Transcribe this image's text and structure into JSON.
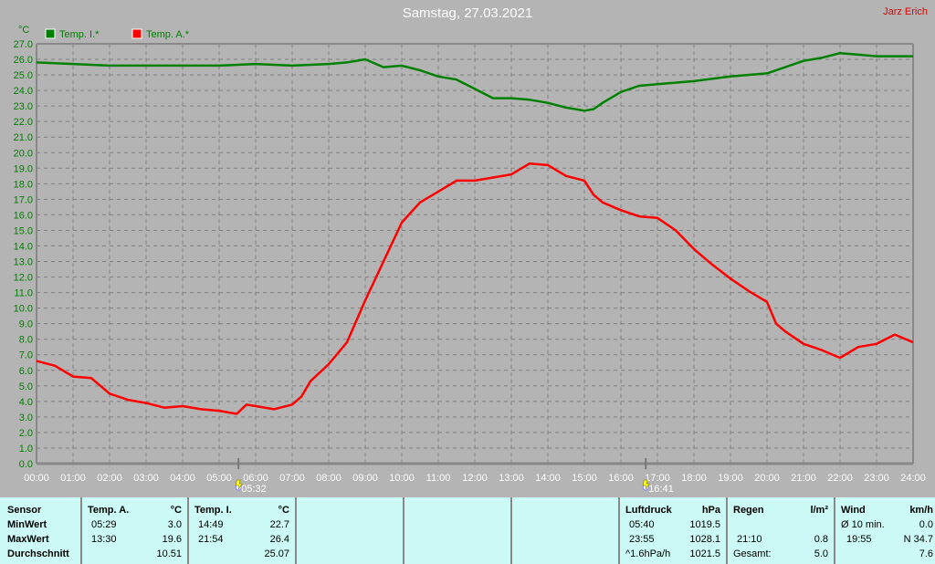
{
  "title": "Samstag, 27.03.2021",
  "author": "Jarz Erich",
  "colors": {
    "inside": "#008000",
    "outside": "#ff0000",
    "axis_text": "#008000",
    "grid": "#808080",
    "panel": "#ccfaf6"
  },
  "chart_data": {
    "type": "line",
    "title": "Samstag, 27.03.2021",
    "ylabel": "°C",
    "xlabel": "",
    "ylim": [
      0,
      27
    ],
    "xlim": [
      0,
      24
    ],
    "grid": true,
    "legend_position": "top-left",
    "y_ticks": [
      "0.0",
      "1.0",
      "2.0",
      "3.0",
      "4.0",
      "5.0",
      "6.0",
      "7.0",
      "8.0",
      "9.0",
      "10.0",
      "11.0",
      "12.0",
      "13.0",
      "14.0",
      "15.0",
      "16.0",
      "17.0",
      "18.0",
      "19.0",
      "20.0",
      "21.0",
      "22.0",
      "23.0",
      "24.0",
      "25.0",
      "26.0",
      "27.0"
    ],
    "x_ticks": [
      "00:00",
      "01:00",
      "02:00",
      "03:00",
      "04:00",
      "05:00",
      "06:00",
      "07:00",
      "08:00",
      "09:00",
      "10:00",
      "11:00",
      "12:00",
      "13:00",
      "14:00",
      "15:00",
      "16:00",
      "17:00",
      "18:00",
      "19:00",
      "20:00",
      "21:00",
      "22:00",
      "23:00",
      "24:00"
    ],
    "markers": [
      {
        "label": "05:32",
        "hour": 5.53,
        "icon": "sunrise-icon"
      },
      {
        "label": "16:41",
        "hour": 16.68,
        "icon": "sunset-icon"
      }
    ],
    "series": [
      {
        "name": "Temp. I.*",
        "color": "#008000",
        "x": [
          0,
          1,
          2,
          3,
          4,
          5,
          6,
          7,
          8,
          8.5,
          9,
          9.5,
          10,
          10.5,
          11,
          11.5,
          12,
          12.5,
          13,
          13.5,
          14,
          14.5,
          15,
          15.25,
          15.5,
          16,
          16.5,
          17,
          18,
          19,
          20,
          20.5,
          21,
          21.5,
          22,
          22.5,
          23,
          24
        ],
        "y": [
          25.8,
          25.7,
          25.6,
          25.6,
          25.6,
          25.6,
          25.7,
          25.6,
          25.7,
          25.8,
          26.0,
          25.5,
          25.6,
          25.3,
          24.9,
          24.7,
          24.1,
          23.5,
          23.5,
          23.4,
          23.2,
          22.9,
          22.7,
          22.8,
          23.2,
          23.9,
          24.3,
          24.4,
          24.6,
          24.9,
          25.1,
          25.5,
          25.9,
          26.1,
          26.4,
          26.3,
          26.2,
          26.2
        ]
      },
      {
        "name": "Temp. A.*",
        "color": "#ff0000",
        "x": [
          0,
          0.5,
          1,
          1.5,
          2,
          2.5,
          3,
          3.5,
          4,
          4.5,
          5,
          5.48,
          5.75,
          6.5,
          7,
          7.25,
          7.5,
          8,
          8.5,
          9,
          9.5,
          10,
          10.5,
          11,
          11.5,
          12,
          12.5,
          13,
          13.5,
          14,
          14.5,
          15,
          15.25,
          15.5,
          16,
          16.5,
          17,
          17.5,
          18,
          18.5,
          19,
          19.5,
          20,
          20.25,
          20.5,
          21,
          21.5,
          22,
          22.5,
          23,
          23.5,
          24
        ],
        "y": [
          6.6,
          6.3,
          5.6,
          5.5,
          4.5,
          4.1,
          3.9,
          3.6,
          3.7,
          3.5,
          3.4,
          3.2,
          3.8,
          3.5,
          3.8,
          4.3,
          5.3,
          6.4,
          7.8,
          10.5,
          13.0,
          15.5,
          16.8,
          17.5,
          18.2,
          18.2,
          18.4,
          18.6,
          19.3,
          19.2,
          18.5,
          18.2,
          17.3,
          16.8,
          16.3,
          15.9,
          15.8,
          15.0,
          13.8,
          12.8,
          11.9,
          11.1,
          10.4,
          9.0,
          8.5,
          7.7,
          7.3,
          6.8,
          7.5,
          7.7,
          8.3,
          7.8
        ]
      }
    ]
  },
  "table": {
    "sensor": {
      "header": "Sensor",
      "rows": [
        "MinWert",
        "MaxWert",
        "Durchschnitt"
      ]
    },
    "temp_a": {
      "header": "Temp. A.",
      "unit": "°C",
      "min_time": "05:29",
      "min": "3.0",
      "max_time": "13:30",
      "max": "19.6",
      "avg": "10.51"
    },
    "temp_i": {
      "header": "Temp. I.",
      "unit": "°C",
      "min_time": "14:49",
      "min": "22.7",
      "max_time": "21:54",
      "max": "26.4",
      "avg": "25.07"
    },
    "pressure": {
      "header": "Luftdruck",
      "unit": "hPa",
      "min_time": "05:40",
      "min": "1019.5",
      "max_time": "23:55",
      "max": "1028.1",
      "trend": "^1.6hPa/h",
      "current": "1021.5"
    },
    "rain": {
      "header": "Regen",
      "unit": "l/m²",
      "max_time": "21:10",
      "max": "0.8",
      "total_label": "Gesamt:",
      "total": "5.0"
    },
    "wind": {
      "header": "Wind",
      "unit": "km/h",
      "avg_label": "Ø 10 min.",
      "avg": "0.0",
      "max_time": "19:55",
      "max": "N 34.7",
      "current": "7.6"
    }
  }
}
